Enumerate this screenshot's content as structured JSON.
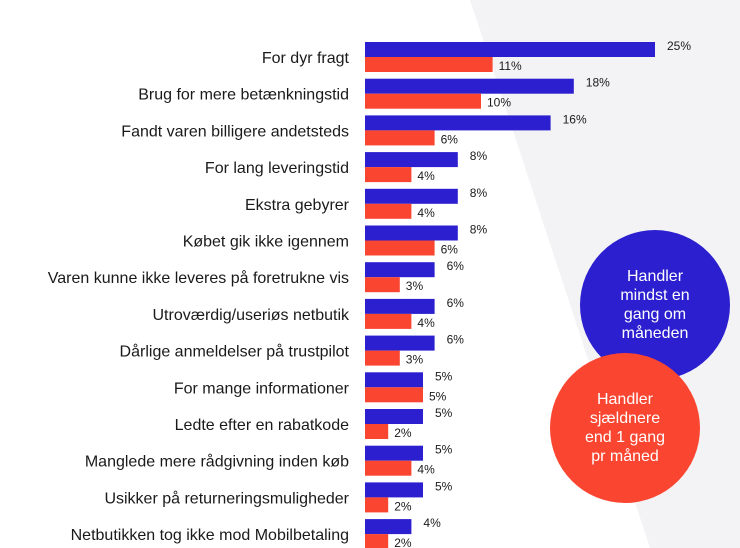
{
  "colors": {
    "series1": "#2c1fcf",
    "series2": "#fa4530",
    "panel": "#f2f2f4",
    "text": "#1a1a1a"
  },
  "chart_data": {
    "type": "bar",
    "orientation": "horizontal",
    "title": "",
    "xlabel": "",
    "ylabel": "",
    "xlim": [
      0,
      25
    ],
    "grid": false,
    "legend_placement": "right",
    "categories": [
      "For dyr fragt",
      "Brug for mere betænkningstid",
      "Fandt varen billigere andetsteds",
      "For lang leveringstid",
      "Ekstra gebyrer",
      "Købet gik ikke igennem",
      "Varen kunne ikke leveres på foretrukne vis",
      "Utroværdig/useriøs netbutik",
      "Dårlige anmeldelser på trustpilot",
      "For mange informationer",
      "Ledte efter en rabatkode",
      "Manglede mere rådgivning inden køb",
      "Usikker på returneringsmuligheder",
      "Netbutikken tog ikke mod Mobilbetaling"
    ],
    "series": [
      {
        "name": "Handler\nmindst en\ngang om\nmåneden",
        "color": "#2c1fcf",
        "values": [
          25,
          18,
          16,
          8,
          8,
          8,
          6,
          6,
          6,
          5,
          5,
          5,
          5,
          4
        ]
      },
      {
        "name": "Handler\nsjældnere\nend 1 gang\npr måned",
        "color": "#fa4530",
        "values": [
          11,
          10,
          6,
          4,
          4,
          6,
          3,
          4,
          3,
          5,
          2,
          4,
          2,
          2
        ]
      }
    ],
    "value_suffix": "%"
  }
}
